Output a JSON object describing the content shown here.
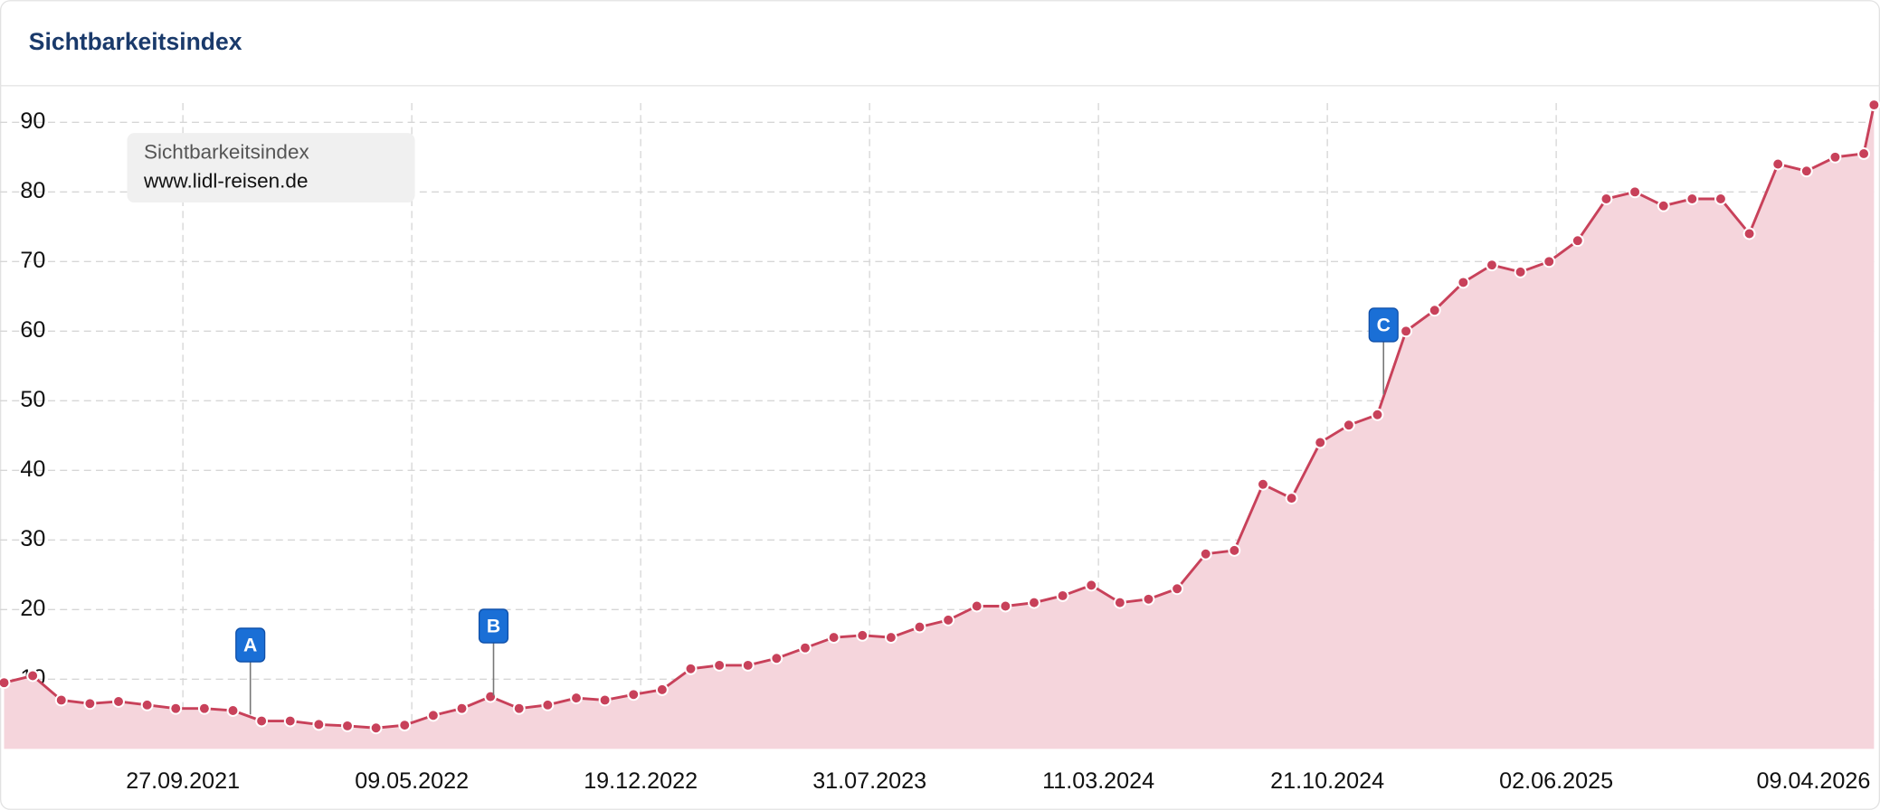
{
  "chart_data": {
    "type": "area",
    "title": "Sichtbarkeitsindex",
    "legend_title": "Sichtbarkeitsindex",
    "legend": "top-left",
    "grid": true,
    "xlim": [
      "2021-04-01",
      "2026-04-09"
    ],
    "ylim": [
      0,
      95
    ],
    "yticks": [
      10,
      20,
      30,
      40,
      50,
      60,
      70,
      80,
      90
    ],
    "xticks": [
      {
        "value": "2021-09-27",
        "label": "27.09.2021"
      },
      {
        "value": "2022-05-09",
        "label": "09.05.2022"
      },
      {
        "value": "2022-12-19",
        "label": "19.12.2022"
      },
      {
        "value": "2023-07-31",
        "label": "31.07.2023"
      },
      {
        "value": "2024-03-11",
        "label": "11.03.2024"
      },
      {
        "value": "2024-10-21",
        "label": "21.10.2024"
      },
      {
        "value": "2025-06-02",
        "label": "02.06.2025"
      },
      {
        "value": "2026-04-09",
        "label": "09.04.2026"
      }
    ],
    "x": [
      "2021-04-05",
      "2021-05-03",
      "2021-05-31",
      "2021-06-28",
      "2021-07-26",
      "2021-08-23",
      "2021-09-20",
      "2021-10-18",
      "2021-11-15",
      "2021-12-13",
      "2022-01-10",
      "2022-02-07",
      "2022-03-07",
      "2022-04-04",
      "2022-05-02",
      "2022-05-30",
      "2022-06-27",
      "2022-07-25",
      "2022-08-22",
      "2022-09-19",
      "2022-10-17",
      "2022-11-14",
      "2022-12-12",
      "2023-01-09",
      "2023-02-06",
      "2023-03-06",
      "2023-04-03",
      "2023-05-01",
      "2023-05-29",
      "2023-06-26",
      "2023-07-24",
      "2023-08-21",
      "2023-09-18",
      "2023-10-16",
      "2023-11-13",
      "2023-12-11",
      "2024-01-08",
      "2024-02-05",
      "2024-03-04",
      "2024-04-01",
      "2024-04-29",
      "2024-05-27",
      "2024-06-24",
      "2024-07-22",
      "2024-08-19",
      "2024-09-16",
      "2024-10-14",
      "2024-11-11",
      "2024-12-09",
      "2025-01-06",
      "2025-02-03",
      "2025-03-03",
      "2025-03-31",
      "2025-04-28",
      "2025-05-26",
      "2025-06-23",
      "2025-07-21",
      "2025-08-18",
      "2025-09-15",
      "2025-10-13",
      "2025-11-10",
      "2025-12-08",
      "2026-01-05",
      "2026-02-02",
      "2026-03-02",
      "2026-03-30",
      "2026-04-09"
    ],
    "series": [
      {
        "name": "www.lidl-reisen.de",
        "color": "#c8415a",
        "fill": "#f5d5dc",
        "values": [
          9.5,
          10.5,
          7,
          6.5,
          6.8,
          6.3,
          5.8,
          5.8,
          5.5,
          4,
          4,
          3.5,
          3.3,
          3,
          3.4,
          4.8,
          5.8,
          7.5,
          5.8,
          6.3,
          7.3,
          7,
          7.8,
          8.5,
          11.5,
          12,
          12,
          13,
          14.5,
          16,
          16.3,
          16,
          17.5,
          18.5,
          20.5,
          20.5,
          21,
          22,
          23.5,
          21,
          21.5,
          23,
          28,
          28.5,
          38,
          36,
          44,
          46.5,
          48,
          60,
          63,
          67,
          69.5,
          68.5,
          70,
          73,
          79,
          80,
          78,
          79,
          79,
          74,
          84,
          83,
          85,
          85.5,
          92.5
        ]
      }
    ],
    "annotations": [
      {
        "label": "A",
        "x": "2021-12-02"
      },
      {
        "label": "B",
        "x": "2022-07-28"
      },
      {
        "label": "C",
        "x": "2024-12-15"
      }
    ]
  }
}
